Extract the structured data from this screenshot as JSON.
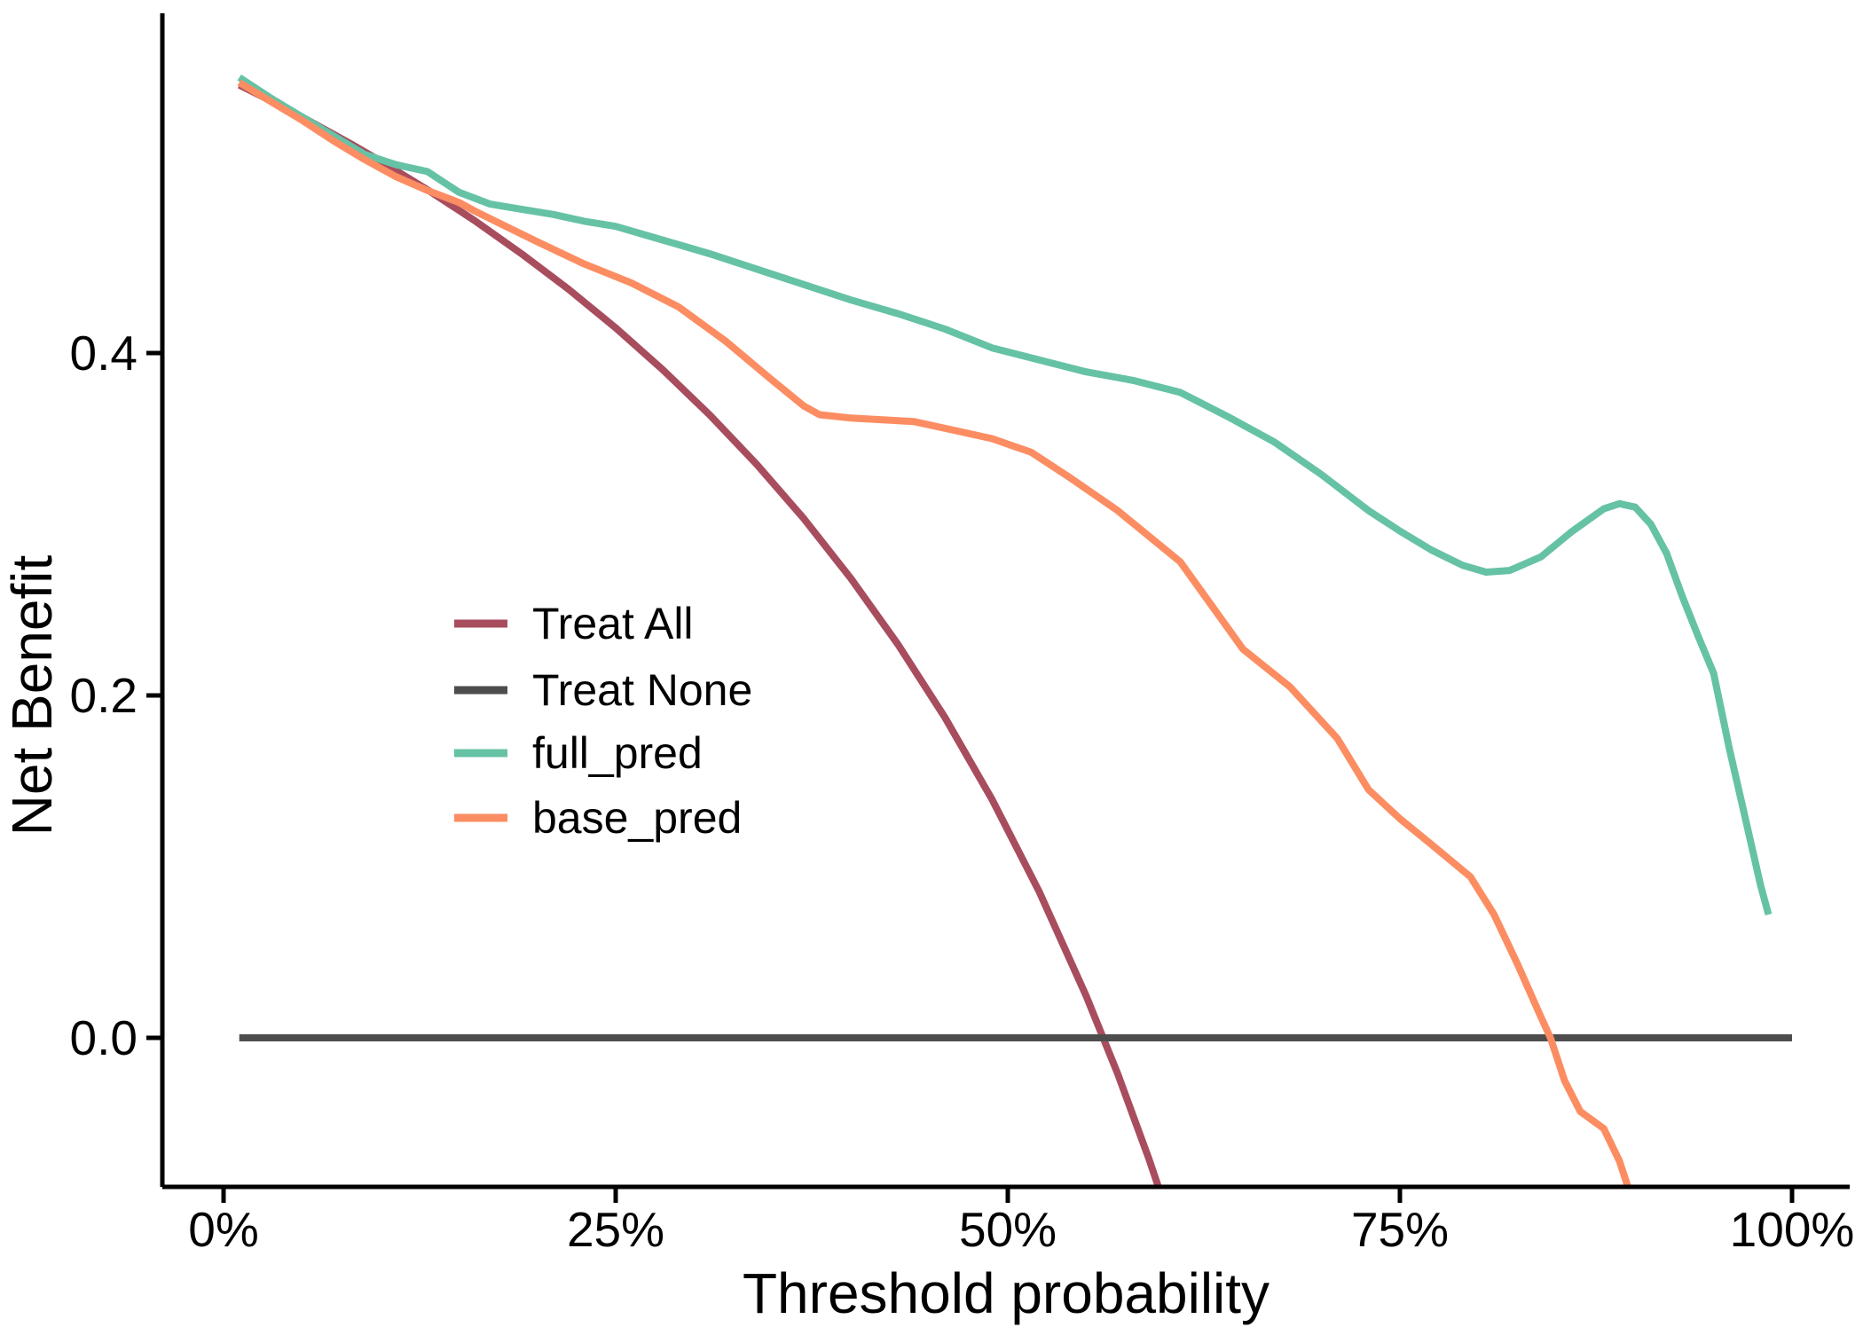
{
  "chart_data": {
    "type": "line",
    "title": "",
    "xlabel": "Threshold probability",
    "ylabel": "Net Benefit",
    "x_tick_labels": [
      "0%",
      "25%",
      "50%",
      "75%",
      "100%"
    ],
    "x_ticks": [
      0,
      25,
      50,
      75,
      100
    ],
    "y_tick_labels": [
      "0.0",
      "0.2",
      "0.4"
    ],
    "y_ticks": [
      0.0,
      0.2,
      0.4
    ],
    "xlim": [
      -3.9,
      103.7
    ],
    "ylim": [
      -0.087,
      0.598
    ],
    "grid": false,
    "legend_position": "inside-left-middle",
    "x_unit": "percent threshold probability",
    "y_unit": "net benefit",
    "series": [
      {
        "name": "Treat All",
        "color": "#A84D5E",
        "points": [
          [
            1,
            0.5566
          ],
          [
            3,
            0.5474
          ],
          [
            5,
            0.5379
          ],
          [
            8,
            0.5228
          ],
          [
            10,
            0.5122
          ],
          [
            13,
            0.4954
          ],
          [
            16,
            0.4774
          ],
          [
            19,
            0.458
          ],
          [
            22,
            0.4372
          ],
          [
            25,
            0.4147
          ],
          [
            28,
            0.3903
          ],
          [
            31,
            0.3638
          ],
          [
            34,
            0.3349
          ],
          [
            37,
            0.3032
          ],
          [
            40,
            0.2683
          ],
          [
            43,
            0.2298
          ],
          [
            46,
            0.187
          ],
          [
            49,
            0.1392
          ],
          [
            52,
            0.0854
          ],
          [
            55,
            0.0244
          ],
          [
            57,
            -0.0209
          ],
          [
            59,
            -0.0707
          ],
          [
            60.5,
            -0.1114
          ]
        ]
      },
      {
        "name": "Treat None",
        "color": "#4D4D4D",
        "points": [
          [
            1,
            0
          ],
          [
            100,
            0
          ]
        ]
      },
      {
        "name": "full_pred",
        "color": "#66C2A5",
        "points": [
          [
            1,
            0.561
          ],
          [
            3,
            0.549
          ],
          [
            5,
            0.538
          ],
          [
            7,
            0.527
          ],
          [
            9,
            0.516
          ],
          [
            11,
            0.51
          ],
          [
            13,
            0.506
          ],
          [
            15,
            0.494
          ],
          [
            17,
            0.487
          ],
          [
            19,
            0.484
          ],
          [
            21,
            0.481
          ],
          [
            23,
            0.477
          ],
          [
            25,
            0.474
          ],
          [
            28,
            0.466
          ],
          [
            31,
            0.458
          ],
          [
            34,
            0.449
          ],
          [
            37,
            0.44
          ],
          [
            40,
            0.431
          ],
          [
            43,
            0.423
          ],
          [
            46,
            0.414
          ],
          [
            49,
            0.403
          ],
          [
            52,
            0.396
          ],
          [
            55,
            0.389
          ],
          [
            58,
            0.384
          ],
          [
            61,
            0.377
          ],
          [
            64,
            0.363
          ],
          [
            67,
            0.348
          ],
          [
            70,
            0.329
          ],
          [
            73,
            0.308
          ],
          [
            75,
            0.296
          ],
          [
            77,
            0.285
          ],
          [
            79,
            0.276
          ],
          [
            80.5,
            0.272
          ],
          [
            82,
            0.273
          ],
          [
            84,
            0.281
          ],
          [
            86,
            0.296
          ],
          [
            88,
            0.309
          ],
          [
            89,
            0.312
          ],
          [
            90,
            0.31
          ],
          [
            91,
            0.3
          ],
          [
            92,
            0.283
          ],
          [
            93,
            0.258
          ],
          [
            94,
            0.235
          ],
          [
            95,
            0.213
          ],
          [
            96,
            0.169
          ],
          [
            97,
            0.129
          ],
          [
            98,
            0.089
          ],
          [
            98.5,
            0.072
          ]
        ]
      },
      {
        "name": "base_pred",
        "color": "#FC8D62",
        "points": [
          [
            1,
            0.558
          ],
          [
            3,
            0.547
          ],
          [
            5,
            0.536
          ],
          [
            7,
            0.524
          ],
          [
            9,
            0.513
          ],
          [
            11,
            0.503
          ],
          [
            13,
            0.495
          ],
          [
            15,
            0.488
          ],
          [
            16,
            0.483
          ],
          [
            18,
            0.474
          ],
          [
            20,
            0.465
          ],
          [
            23,
            0.452
          ],
          [
            26,
            0.441
          ],
          [
            29,
            0.427
          ],
          [
            32,
            0.407
          ],
          [
            35,
            0.384
          ],
          [
            37,
            0.369
          ],
          [
            38,
            0.364
          ],
          [
            40,
            0.362
          ],
          [
            42,
            0.361
          ],
          [
            44,
            0.36
          ],
          [
            46,
            0.356
          ],
          [
            49,
            0.35
          ],
          [
            51.5,
            0.342
          ],
          [
            54,
            0.327
          ],
          [
            57,
            0.308
          ],
          [
            61,
            0.278
          ],
          [
            65,
            0.227
          ],
          [
            68,
            0.205
          ],
          [
            71,
            0.175
          ],
          [
            73,
            0.145
          ],
          [
            75,
            0.128
          ],
          [
            77,
            0.113
          ],
          [
            79.5,
            0.094
          ],
          [
            81,
            0.072
          ],
          [
            82.5,
            0.043
          ],
          [
            84,
            0.012
          ],
          [
            84.6,
            0
          ],
          [
            85.5,
            -0.025
          ],
          [
            86.5,
            -0.043
          ],
          [
            88,
            -0.053
          ],
          [
            89,
            -0.072
          ],
          [
            90,
            -0.1
          ]
        ]
      }
    ]
  }
}
